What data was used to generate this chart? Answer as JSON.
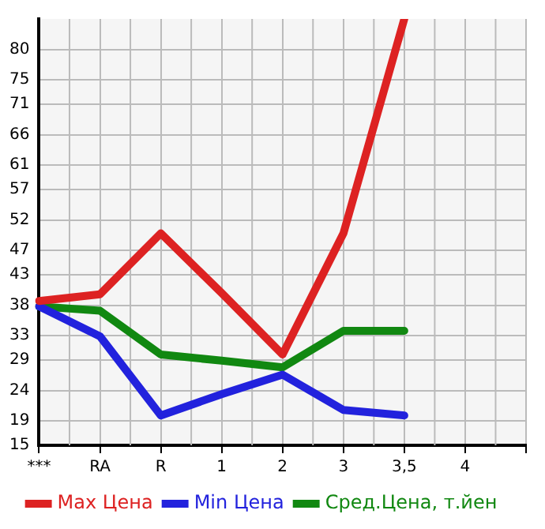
{
  "chart_data": {
    "type": "line",
    "categories": [
      "***",
      "RA",
      "R",
      "1",
      "2",
      "3",
      "3,5",
      "4",
      null
    ],
    "series": [
      {
        "name": "Max Цена",
        "color": "#dd2222",
        "values": [
          38.7,
          39.8,
          49.8,
          40,
          29.9,
          49.8,
          85,
          null,
          null
        ]
      },
      {
        "name": "Min Цена",
        "color": "#2222dd",
        "values": [
          37.8,
          32.9,
          19.9,
          23.4,
          26.6,
          20.8,
          19.9,
          null,
          null
        ]
      },
      {
        "name": "Сред.Цена, т.йен",
        "color": "#118811",
        "values": [
          37.8,
          37.1,
          29.9,
          28.9,
          27.8,
          33.8,
          33.8,
          null,
          null
        ]
      }
    ],
    "ylim": [
      15,
      85
    ],
    "yticks": [
      15,
      19,
      24,
      29,
      33,
      38,
      43,
      47,
      52,
      57,
      61,
      66,
      71,
      75,
      80
    ],
    "grid": true,
    "legend": "bottom",
    "marker": "none",
    "line_style": "solid"
  }
}
